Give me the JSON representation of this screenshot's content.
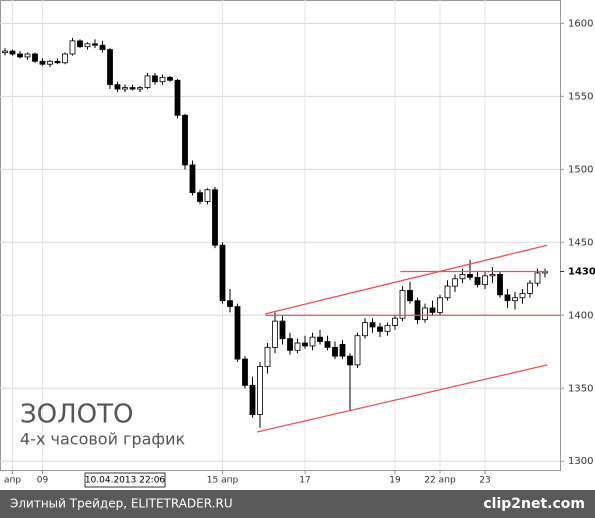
{
  "chart_data": {
    "type": "candlestick",
    "title": "ЗОЛОТО",
    "subtitle": "4-х часовой график",
    "ylim": [
      1294,
      1616
    ],
    "yticks": [
      1300,
      1350,
      1400,
      1450,
      1500,
      1550,
      1600
    ],
    "last_price": 1430,
    "grid": true,
    "up_color": "#ffffff",
    "down_color": "#000000",
    "line_color": "#f05050",
    "xticks": [
      {
        "value": 1,
        "label": "апр"
      },
      {
        "value": 5,
        "label": "09"
      },
      {
        "value": 29,
        "label": "15 апр"
      },
      {
        "value": 40,
        "label": "17"
      },
      {
        "value": 52,
        "label": "19"
      },
      {
        "value": 58,
        "label": "22 апр"
      },
      {
        "value": 64,
        "label": "23"
      }
    ],
    "cursor": {
      "value": 16,
      "label": "10.04.2013 22:06"
    },
    "candles": [
      [
        1580,
        1583,
        1578,
        1581
      ],
      [
        1581,
        1582,
        1578,
        1579
      ],
      [
        1579,
        1581,
        1576,
        1577
      ],
      [
        1577,
        1580,
        1575,
        1579
      ],
      [
        1579,
        1580,
        1573,
        1574
      ],
      [
        1574,
        1576,
        1571,
        1572
      ],
      [
        1572,
        1575,
        1570,
        1574
      ],
      [
        1574,
        1576,
        1572,
        1573
      ],
      [
        1573,
        1580,
        1572,
        1579
      ],
      [
        1579,
        1590,
        1578,
        1588
      ],
      [
        1588,
        1589,
        1583,
        1584
      ],
      [
        1584,
        1587,
        1582,
        1586
      ],
      [
        1586,
        1589,
        1583,
        1585
      ],
      [
        1585,
        1588,
        1580,
        1582
      ],
      [
        1582,
        1583,
        1555,
        1558
      ],
      [
        1558,
        1560,
        1553,
        1555
      ],
      [
        1555,
        1558,
        1553,
        1556
      ],
      [
        1556,
        1558,
        1554,
        1555
      ],
      [
        1555,
        1557,
        1553,
        1556
      ],
      [
        1556,
        1566,
        1555,
        1564
      ],
      [
        1564,
        1566,
        1558,
        1560
      ],
      [
        1560,
        1565,
        1558,
        1563
      ],
      [
        1563,
        1564,
        1560,
        1561
      ],
      [
        1561,
        1562,
        1535,
        1537
      ],
      [
        1537,
        1538,
        1500,
        1503
      ],
      [
        1503,
        1506,
        1482,
        1484
      ],
      [
        1484,
        1486,
        1476,
        1478
      ],
      [
        1478,
        1487,
        1476,
        1486
      ],
      [
        1486,
        1488,
        1446,
        1448
      ],
      [
        1448,
        1450,
        1408,
        1410
      ],
      [
        1410,
        1418,
        1402,
        1406
      ],
      [
        1406,
        1408,
        1368,
        1370
      ],
      [
        1370,
        1372,
        1350,
        1352
      ],
      [
        1352,
        1358,
        1330,
        1332
      ],
      [
        1332,
        1368,
        1323,
        1365
      ],
      [
        1365,
        1381,
        1360,
        1378
      ],
      [
        1378,
        1402,
        1374,
        1396
      ],
      [
        1396,
        1400,
        1380,
        1384
      ],
      [
        1384,
        1388,
        1373,
        1376
      ],
      [
        1376,
        1384,
        1374,
        1381
      ],
      [
        1381,
        1386,
        1377,
        1379
      ],
      [
        1379,
        1388,
        1376,
        1385
      ],
      [
        1385,
        1390,
        1380,
        1382
      ],
      [
        1382,
        1386,
        1376,
        1378
      ],
      [
        1378,
        1382,
        1370,
        1372
      ],
      [
        1380,
        1383,
        1370,
        1372
      ],
      [
        1372,
        1374,
        1335,
        1366
      ],
      [
        1366,
        1388,
        1364,
        1386
      ],
      [
        1386,
        1398,
        1384,
        1395
      ],
      [
        1395,
        1398,
        1388,
        1392
      ],
      [
        1392,
        1395,
        1385,
        1389
      ],
      [
        1389,
        1395,
        1386,
        1393
      ],
      [
        1393,
        1400,
        1390,
        1398
      ],
      [
        1398,
        1420,
        1396,
        1417
      ],
      [
        1417,
        1423,
        1408,
        1410
      ],
      [
        1410,
        1412,
        1394,
        1397
      ],
      [
        1397,
        1408,
        1395,
        1405
      ],
      [
        1405,
        1410,
        1400,
        1402
      ],
      [
        1402,
        1414,
        1400,
        1412
      ],
      [
        1412,
        1424,
        1410,
        1420
      ],
      [
        1420,
        1428,
        1416,
        1425
      ],
      [
        1425,
        1432,
        1422,
        1428
      ],
      [
        1428,
        1438,
        1424,
        1426
      ],
      [
        1426,
        1430,
        1419,
        1421
      ],
      [
        1421,
        1430,
        1418,
        1427
      ],
      [
        1427,
        1433,
        1422,
        1428
      ],
      [
        1428,
        1430,
        1412,
        1414
      ],
      [
        1414,
        1418,
        1405,
        1410
      ],
      [
        1410,
        1416,
        1404,
        1412
      ],
      [
        1412,
        1418,
        1408,
        1415
      ],
      [
        1415,
        1424,
        1412,
        1422
      ],
      [
        1422,
        1432,
        1420,
        1429
      ],
      [
        1429,
        1432,
        1426,
        1430
      ]
    ],
    "trendlines": [
      {
        "x": [
          34.7,
          72.3
        ],
        "y": [
          1401,
          1448
        ]
      },
      {
        "x": [
          33.6,
          72.3
        ],
        "y": [
          1320,
          1366
        ]
      },
      {
        "x": [
          34.7,
          74
        ],
        "y": [
          1400,
          1400
        ]
      },
      {
        "x": [
          52.7,
          72.3
        ],
        "y": [
          1430,
          1430
        ]
      }
    ]
  },
  "footer": {
    "left": "Элитный Трейдер, ELITETRADER.RU",
    "right": "clip2net.com"
  }
}
